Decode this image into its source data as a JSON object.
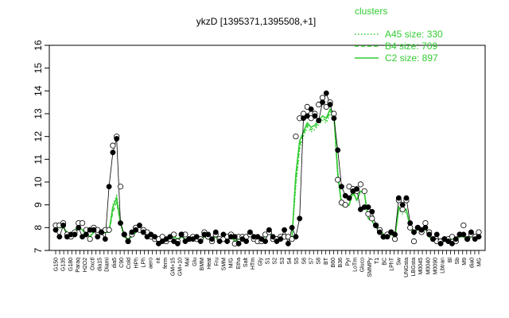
{
  "chart_data": {
    "type": "line",
    "title": "ykzD [1395371,1395508,+1]",
    "ylim": [
      7,
      16
    ],
    "yticks": [
      7,
      8,
      9,
      10,
      11,
      12,
      13,
      14,
      15,
      16
    ],
    "grid": false,
    "legend": {
      "title": "clusters",
      "placement": "top-right",
      "color": "#33cc33",
      "entries": [
        {
          "label": "A45 size: 330",
          "dash": "dotted"
        },
        {
          "label": "B4 size: 709",
          "dash": "dashed"
        },
        {
          "label": "C2 size: 897",
          "dash": "solid"
        }
      ]
    },
    "x_tick_labels": [
      "G150",
      "G135",
      "G180",
      "Paraq",
      "H2O2",
      "Oxctl",
      "dia15",
      "Diami",
      "dia5",
      "C90",
      "Cold",
      "HPh",
      "LPh",
      "aero",
      "nit",
      "ferm",
      "GM+15",
      "GM+10",
      "Mal",
      "Glu",
      "BMM",
      "Heat",
      "Fru",
      "SMM",
      "M/G",
      "Etha",
      "Salt",
      "HTm",
      "Gly",
      "S1",
      "S2",
      "S3",
      "S4",
      "S5",
      "S6",
      "S7",
      "S8",
      "BT",
      "B60",
      "B36",
      "Pyr",
      "LoTm",
      "Gluco",
      "SMMPy",
      "T1",
      "BC",
      "LPhT",
      "Sw",
      "UNGsta",
      "LBGsta",
      "M0045",
      "M0040",
      "M0090",
      "Lbtran",
      "Bl",
      "Sb",
      "M9",
      "dia0",
      "MG"
    ],
    "x_tick_label_count": 106,
    "series": [
      {
        "name": "C2",
        "style": "solid",
        "values": [
          8.0,
          8.0,
          8.0,
          7.8,
          7.7,
          7.8,
          8.0,
          7.9,
          7.7,
          7.6,
          7.8,
          7.9,
          7.7,
          7.8,
          7.8,
          8.9,
          9.3,
          8.2,
          7.6,
          7.5,
          7.6,
          7.8,
          7.9,
          7.8,
          7.7,
          7.6,
          7.5,
          7.5,
          7.5,
          7.5,
          7.4,
          7.6,
          7.5,
          7.6,
          7.5,
          7.5,
          7.5,
          7.6,
          7.5,
          7.6,
          7.5,
          7.5,
          7.6,
          7.4,
          7.5,
          7.5,
          7.6,
          7.4,
          7.5,
          7.5,
          7.6,
          7.7,
          7.5,
          7.4,
          7.5,
          7.6,
          7.8,
          7.6,
          7.5,
          7.6,
          7.5,
          7.6,
          7.6,
          10.3,
          11.8,
          12.2,
          12.6,
          12.4,
          12.5,
          12.7,
          12.9,
          12.8,
          13.2,
          13.0,
          10.4,
          9.0,
          8.9,
          9.0,
          9.6,
          9.2,
          9.6,
          9.5,
          8.4,
          8.3,
          8.0,
          7.9,
          7.7,
          7.6,
          7.7,
          7.6,
          8.9,
          8.7,
          8.8,
          8.0,
          7.7,
          8.0,
          7.9,
          8.0,
          7.6,
          7.4,
          7.5,
          7.4,
          7.4,
          7.4,
          7.5,
          7.5,
          7.6,
          7.6,
          7.5,
          7.6,
          7.6,
          7.6
        ]
      },
      {
        "name": "B4",
        "style": "dashed",
        "values": [
          8.0,
          8.0,
          8.0,
          7.8,
          7.7,
          7.8,
          8.0,
          7.9,
          7.7,
          7.6,
          7.8,
          7.9,
          7.7,
          7.8,
          7.8,
          8.7,
          9.1,
          8.2,
          7.6,
          7.5,
          7.6,
          7.8,
          7.9,
          7.8,
          7.7,
          7.6,
          7.5,
          7.5,
          7.5,
          7.5,
          7.4,
          7.6,
          7.5,
          7.6,
          7.5,
          7.5,
          7.5,
          7.6,
          7.5,
          7.6,
          7.5,
          7.5,
          7.6,
          7.4,
          7.5,
          7.5,
          7.6,
          7.4,
          7.5,
          7.5,
          7.6,
          7.7,
          7.5,
          7.4,
          7.5,
          7.6,
          7.8,
          7.6,
          7.5,
          7.6,
          7.5,
          7.6,
          7.6,
          10.0,
          11.6,
          12.1,
          12.5,
          12.3,
          12.4,
          12.6,
          12.8,
          12.7,
          13.1,
          12.9,
          10.3,
          9.0,
          8.9,
          9.0,
          9.5,
          9.2,
          9.6,
          9.5,
          8.4,
          8.3,
          8.0,
          7.9,
          7.7,
          7.6,
          7.7,
          7.6,
          8.8,
          8.7,
          8.8,
          8.0,
          7.7,
          8.0,
          7.9,
          8.0,
          7.6,
          7.4,
          7.5,
          7.4,
          7.4,
          7.4,
          7.5,
          7.5,
          7.6,
          7.6,
          7.5,
          7.6,
          7.6,
          7.6
        ]
      },
      {
        "name": "A45",
        "style": "dotted",
        "values": [
          8.1,
          8.1,
          8.0,
          7.8,
          7.7,
          7.9,
          8.1,
          7.9,
          7.7,
          7.6,
          7.9,
          7.9,
          7.7,
          7.8,
          7.9,
          9.0,
          9.4,
          8.3,
          7.6,
          7.5,
          7.6,
          7.8,
          7.9,
          7.8,
          7.7,
          7.6,
          7.5,
          7.5,
          7.5,
          7.5,
          7.4,
          7.6,
          7.5,
          7.6,
          7.5,
          7.5,
          7.5,
          7.6,
          7.5,
          7.6,
          7.5,
          7.5,
          7.6,
          7.4,
          7.5,
          7.5,
          7.6,
          7.4,
          7.5,
          7.5,
          7.6,
          7.7,
          7.5,
          7.4,
          7.5,
          7.6,
          7.8,
          7.6,
          7.5,
          7.6,
          7.5,
          7.6,
          7.6,
          9.8,
          11.4,
          12.0,
          12.4,
          12.2,
          12.3,
          12.5,
          12.7,
          12.6,
          13.0,
          12.8,
          10.2,
          9.0,
          8.9,
          9.0,
          9.5,
          9.2,
          9.6,
          9.5,
          8.4,
          8.3,
          8.0,
          7.9,
          7.7,
          7.6,
          7.7,
          7.6,
          8.8,
          8.6,
          8.7,
          8.0,
          7.7,
          8.0,
          7.9,
          8.0,
          7.6,
          7.4,
          7.5,
          7.4,
          7.4,
          7.4,
          7.5,
          7.5,
          7.6,
          7.6,
          7.5,
          7.6,
          7.6,
          7.6
        ]
      },
      {
        "name": "",
        "style": "black-points",
        "values": [
          7.9,
          7.6,
          8.1,
          7.6,
          7.7,
          7.7,
          8.0,
          7.6,
          7.7,
          7.9,
          7.9,
          7.6,
          7.8,
          7.5,
          9.8,
          11.3,
          11.9,
          8.2,
          7.7,
          7.4,
          7.8,
          7.9,
          8.1,
          7.8,
          7.6,
          7.7,
          7.6,
          7.3,
          7.4,
          7.5,
          7.6,
          7.4,
          7.3,
          7.7,
          7.4,
          7.5,
          7.5,
          7.6,
          7.4,
          7.7,
          7.7,
          7.5,
          7.8,
          7.4,
          7.7,
          7.4,
          7.6,
          7.6,
          7.3,
          7.5,
          7.4,
          7.8,
          7.6,
          7.6,
          7.5,
          7.4,
          7.9,
          7.6,
          7.4,
          7.5,
          7.9,
          7.3,
          8.0,
          7.6,
          8.4,
          12.8,
          12.9,
          13.2,
          12.9,
          12.7,
          13.5,
          13.9,
          13.4,
          12.8,
          11.4,
          9.8,
          9.4,
          9.3,
          9.6,
          9.7,
          8.8,
          8.9,
          8.9,
          8.7,
          8.1,
          7.8,
          7.6,
          7.6,
          7.8,
          7.7,
          9.3,
          9.0,
          9.3,
          8.2,
          7.8,
          8.0,
          7.9,
          8.0,
          7.7,
          7.5,
          7.7,
          7.3,
          7.5,
          7.4,
          7.3,
          7.5,
          7.7,
          7.7,
          7.5,
          7.8,
          7.5,
          7.6
        ]
      },
      {
        "name": "",
        "style": "open-points",
        "values": [
          8.1,
          8.1,
          8.2,
          7.7,
          7.6,
          7.8,
          8.2,
          8.2,
          7.9,
          7.5,
          8.0,
          7.9,
          7.8,
          7.9,
          7.9,
          11.6,
          12.0,
          9.8,
          7.7,
          7.4,
          7.7,
          8.0,
          7.9,
          7.9,
          7.8,
          7.6,
          7.5,
          7.5,
          7.6,
          7.4,
          7.5,
          7.7,
          7.4,
          7.7,
          7.7,
          7.5,
          7.6,
          7.5,
          7.5,
          7.8,
          7.6,
          7.4,
          7.7,
          7.5,
          7.5,
          7.6,
          7.7,
          7.3,
          7.6,
          7.6,
          7.6,
          7.7,
          7.5,
          7.4,
          7.4,
          7.7,
          7.8,
          7.5,
          7.5,
          7.6,
          7.6,
          7.6,
          7.5,
          12.0,
          12.8,
          13.0,
          13.3,
          12.8,
          13.0,
          13.4,
          13.7,
          13.3,
          13.5,
          13.0,
          10.1,
          9.1,
          9.0,
          9.8,
          9.7,
          9.6,
          9.9,
          9.6,
          8.6,
          8.4,
          8.1,
          7.9,
          7.6,
          7.7,
          7.8,
          7.5,
          9.2,
          8.8,
          9.2,
          8.0,
          7.4,
          8.0,
          7.8,
          8.2,
          7.8,
          7.5,
          7.4,
          7.4,
          7.5,
          7.5,
          7.6,
          7.4,
          7.7,
          8.1,
          7.5,
          7.7,
          7.6,
          7.8
        ]
      }
    ]
  }
}
